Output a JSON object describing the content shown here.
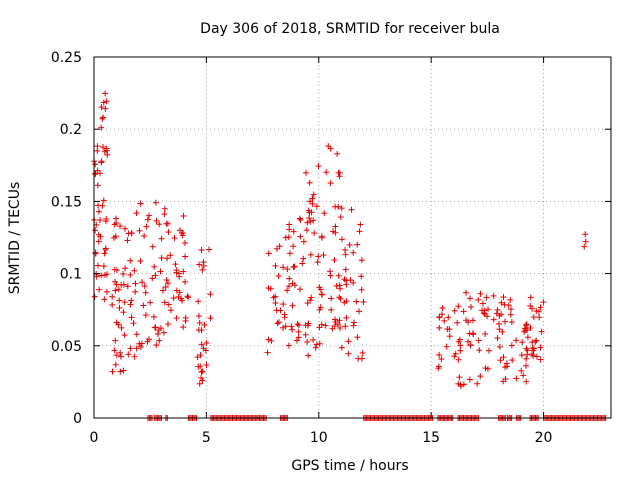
{
  "chart_data": {
    "type": "scatter",
    "title": "Day 306 of 2018, SRMTID for receiver bula",
    "xlabel": "GPS time / hours",
    "ylabel": "SRMTID / TECUs",
    "xlim": [
      0,
      23
    ],
    "ylim": [
      0,
      0.25
    ],
    "xticks": [
      0,
      5,
      10,
      15,
      20
    ],
    "yticks": [
      0,
      0.05,
      0.1,
      0.15,
      0.2,
      0.25
    ],
    "xtick_labels": [
      "0",
      "5",
      "10",
      "15",
      "20"
    ],
    "ytick_labels": [
      "0",
      "0.05",
      "0.1",
      "0.15",
      "0.2",
      "0.25"
    ],
    "grid": true,
    "legend": "none",
    "marker": "+",
    "color": "#e00000",
    "clusters": [
      {
        "x_range": [
          0.0,
          0.6
        ],
        "y_range": [
          0.08,
          0.19
        ],
        "count": 45
      },
      {
        "x_range": [
          0.3,
          0.6
        ],
        "y_range": [
          0.2,
          0.225
        ],
        "count": 8
      },
      {
        "x_range": [
          0.8,
          1.6
        ],
        "y_range": [
          0.03,
          0.14
        ],
        "count": 40
      },
      {
        "x_range": [
          1.6,
          2.6
        ],
        "y_range": [
          0.04,
          0.15
        ],
        "count": 35
      },
      {
        "x_range": [
          2.6,
          3.6
        ],
        "y_range": [
          0.05,
          0.15
        ],
        "count": 35
      },
      {
        "x_range": [
          3.6,
          4.2
        ],
        "y_range": [
          0.06,
          0.14
        ],
        "count": 25
      },
      {
        "x_range": [
          4.6,
          5.2
        ],
        "y_range": [
          0.02,
          0.12
        ],
        "count": 28
      },
      {
        "x_range": [
          7.7,
          8.5
        ],
        "y_range": [
          0.04,
          0.12
        ],
        "count": 22
      },
      {
        "x_range": [
          8.5,
          9.5
        ],
        "y_range": [
          0.05,
          0.14
        ],
        "count": 35
      },
      {
        "x_range": [
          9.4,
          10.1
        ],
        "y_range": [
          0.04,
          0.18
        ],
        "count": 35
      },
      {
        "x_range": [
          10.1,
          11.0
        ],
        "y_range": [
          0.06,
          0.195
        ],
        "count": 40
      },
      {
        "x_range": [
          11.0,
          12.0
        ],
        "y_range": [
          0.04,
          0.15
        ],
        "count": 35
      },
      {
        "x_range": [
          15.3,
          16.0
        ],
        "y_range": [
          0.03,
          0.08
        ],
        "count": 15
      },
      {
        "x_range": [
          16.0,
          17.2
        ],
        "y_range": [
          0.02,
          0.09
        ],
        "count": 35
      },
      {
        "x_range": [
          17.2,
          18.6
        ],
        "y_range": [
          0.025,
          0.085
        ],
        "count": 40
      },
      {
        "x_range": [
          18.6,
          19.4
        ],
        "y_range": [
          0.025,
          0.065
        ],
        "count": 20
      },
      {
        "x_range": [
          19.4,
          20.0
        ],
        "y_range": [
          0.04,
          0.085
        ],
        "count": 22
      },
      {
        "x_range": [
          21.8,
          21.9
        ],
        "y_range": [
          0.118,
          0.128
        ],
        "count": 3
      }
    ],
    "zero_segments": [
      [
        2.4,
        2.6
      ],
      [
        2.7,
        3.0
      ],
      [
        3.2,
        3.3
      ],
      [
        4.2,
        4.6
      ],
      [
        5.2,
        7.7
      ],
      [
        8.3,
        8.6
      ],
      [
        12.0,
        15.1
      ],
      [
        15.3,
        16.0
      ],
      [
        16.2,
        17.1
      ],
      [
        18.0,
        18.3
      ],
      [
        18.4,
        18.6
      ],
      [
        18.8,
        19.0
      ],
      [
        19.4,
        19.8
      ],
      [
        20.0,
        22.8
      ]
    ]
  }
}
